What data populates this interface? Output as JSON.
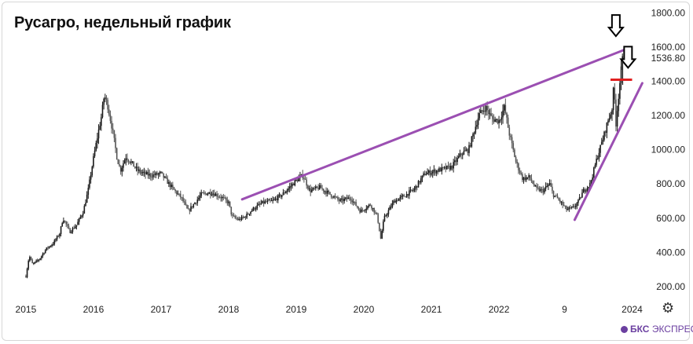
{
  "title": "Русагро, недельный график",
  "brand": {
    "name": "БКС",
    "suffix": "ЭКСПРЕСС"
  },
  "settings_icon": "gear-icon",
  "colors": {
    "price": "#1a1a1a",
    "trendline": "#9b4fb2",
    "resistance": "#e02020",
    "arrow": "#000000"
  },
  "chart_data": {
    "type": "candlestick",
    "title": "Русагро, недельный график",
    "x_ticks": [
      "2015",
      "2016",
      "2017",
      "2018",
      "2019",
      "2020",
      "2021",
      "2022",
      "9",
      "2024"
    ],
    "y_ticks": [
      "200.00",
      "400.00",
      "600.00",
      "800.00",
      "1000.00",
      "1200.00",
      "1400.00",
      "1600.00",
      "1800.00"
    ],
    "last_price_label": "1536.80",
    "ylim": [
      130,
      1840
    ],
    "xlim": [
      2014.85,
      2024.15
    ],
    "grid": false,
    "price_path": [
      [
        2015.0,
        260
      ],
      [
        2015.05,
        380
      ],
      [
        2015.1,
        330
      ],
      [
        2015.2,
        360
      ],
      [
        2015.3,
        420
      ],
      [
        2015.4,
        450
      ],
      [
        2015.5,
        510
      ],
      [
        2015.55,
        600
      ],
      [
        2015.65,
        520
      ],
      [
        2015.75,
        560
      ],
      [
        2015.85,
        640
      ],
      [
        2015.92,
        760
      ],
      [
        2016.0,
        950
      ],
      [
        2016.07,
        1100
      ],
      [
        2016.12,
        1200
      ],
      [
        2016.16,
        1320
      ],
      [
        2016.21,
        1260
      ],
      [
        2016.28,
        1120
      ],
      [
        2016.35,
        950
      ],
      [
        2016.4,
        880
      ],
      [
        2016.48,
        960
      ],
      [
        2016.55,
        930
      ],
      [
        2016.65,
        880
      ],
      [
        2016.75,
        860
      ],
      [
        2016.85,
        850
      ],
      [
        2017.0,
        860
      ],
      [
        2017.1,
        810
      ],
      [
        2017.2,
        760
      ],
      [
        2017.3,
        720
      ],
      [
        2017.4,
        640
      ],
      [
        2017.5,
        690
      ],
      [
        2017.6,
        740
      ],
      [
        2017.75,
        750
      ],
      [
        2017.9,
        720
      ],
      [
        2018.0,
        690
      ],
      [
        2018.05,
        610
      ],
      [
        2018.15,
        590
      ],
      [
        2018.25,
        610
      ],
      [
        2018.35,
        650
      ],
      [
        2018.5,
        690
      ],
      [
        2018.65,
        700
      ],
      [
        2018.8,
        740
      ],
      [
        2019.0,
        820
      ],
      [
        2019.1,
        850
      ],
      [
        2019.2,
        760
      ],
      [
        2019.35,
        780
      ],
      [
        2019.5,
        740
      ],
      [
        2019.65,
        700
      ],
      [
        2019.8,
        720
      ],
      [
        2019.95,
        640
      ],
      [
        2020.1,
        680
      ],
      [
        2020.2,
        610
      ],
      [
        2020.25,
        480
      ],
      [
        2020.3,
        600
      ],
      [
        2020.45,
        700
      ],
      [
        2020.6,
        730
      ],
      [
        2020.75,
        770
      ],
      [
        2020.9,
        860
      ],
      [
        2021.1,
        880
      ],
      [
        2021.3,
        900
      ],
      [
        2021.45,
        980
      ],
      [
        2021.55,
        1000
      ],
      [
        2021.7,
        1200
      ],
      [
        2021.8,
        1250
      ],
      [
        2021.9,
        1180
      ],
      [
        2022.0,
        1170
      ],
      [
        2022.08,
        1250
      ],
      [
        2022.15,
        1100
      ],
      [
        2022.25,
        930
      ],
      [
        2022.35,
        830
      ],
      [
        2022.45,
        840
      ],
      [
        2022.55,
        770
      ],
      [
        2022.65,
        760
      ],
      [
        2022.75,
        800
      ],
      [
        2022.8,
        740
      ],
      [
        2022.9,
        700
      ],
      [
        2023.0,
        650
      ],
      [
        2023.1,
        660
      ],
      [
        2023.18,
        700
      ],
      [
        2023.25,
        760
      ],
      [
        2023.35,
        800
      ],
      [
        2023.45,
        950
      ],
      [
        2023.55,
        1080
      ],
      [
        2023.62,
        1180
      ],
      [
        2023.67,
        1230
      ],
      [
        2023.7,
        1380
      ],
      [
        2023.73,
        1150
      ],
      [
        2023.76,
        1280
      ],
      [
        2023.8,
        1440
      ],
      [
        2023.83,
        1536.8
      ]
    ],
    "resistance_line": {
      "from": [
        2018.2,
        710
      ],
      "to": [
        2023.95,
        1600
      ]
    },
    "support_line": {
      "from": [
        2023.12,
        590
      ],
      "to": [
        2024.12,
        1390
      ]
    },
    "horizontal_level": {
      "from": 2023.65,
      "to": 2023.97,
      "value": 1410
    },
    "arrows": [
      [
        2023.73,
        1665
      ],
      [
        2023.91,
        1480
      ]
    ]
  }
}
